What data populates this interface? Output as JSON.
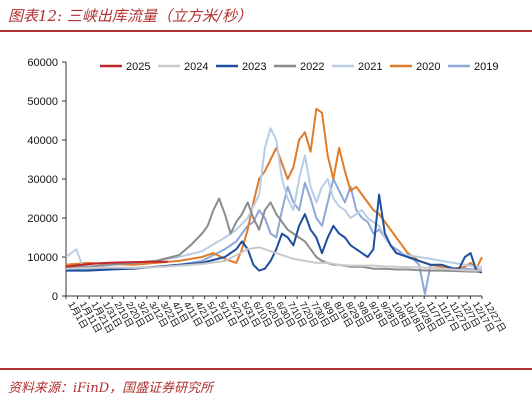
{
  "figure": {
    "title": "图表12:  三峡出库流量（立方米/秒）",
    "source": "资料来源：iFinD，国盛证券研究所"
  },
  "chart_data": {
    "type": "line",
    "title": "图表12:  三峡出库流量（立方米/秒）",
    "xlabel": "",
    "ylabel": "",
    "ylim": [
      0,
      60000
    ],
    "yticks": [
      0,
      10000,
      20000,
      30000,
      40000,
      50000,
      60000
    ],
    "xticks": [
      "1月1日",
      "1月11日",
      "1月21日",
      "1/31日",
      "2/10日",
      "2/20日",
      "3/2日",
      "3/12日",
      "3/22日",
      "4/1日",
      "4/11日",
      "4/21日",
      "5/1日",
      "5/11日",
      "5/21日",
      "5/31日",
      "6/10日",
      "6/20日",
      "6/30日",
      "7/10日",
      "7/20日",
      "7/30日",
      "8/9日",
      "8/19日",
      "8/29日",
      "9/8日",
      "9/18日",
      "9/28日",
      "10/8日",
      "10/18日",
      "10/28日",
      "11/7日",
      "11/17日",
      "11/27日",
      "12/7日",
      "12/17日",
      "12/27日"
    ],
    "grid": false,
    "legend_position": "top",
    "series": [
      {
        "name": "2025",
        "color": "#c0282d",
        "x": [
          1,
          15,
          30,
          45,
          60,
          75,
          90
        ],
        "values": [
          7500,
          8000,
          8400,
          8600,
          8700,
          8800,
          8800
        ]
      },
      {
        "name": "2024",
        "color": "#c9c9c9",
        "x": [
          1,
          20,
          40,
          60,
          80,
          100,
          120,
          140,
          150,
          160,
          170,
          180,
          190,
          200,
          210,
          220,
          230,
          240,
          250,
          260,
          270,
          280,
          290,
          300,
          310,
          320,
          330,
          340,
          350,
          360,
          365
        ],
        "values": [
          7000,
          7200,
          7300,
          7200,
          7400,
          7800,
          8200,
          9000,
          10500,
          12000,
          12500,
          11500,
          10500,
          9500,
          9000,
          8500,
          8500,
          8000,
          7800,
          7800,
          7800,
          7600,
          7500,
          7400,
          7300,
          7200,
          7000,
          6800,
          6600,
          6500,
          6500
        ]
      },
      {
        "name": "2023",
        "color": "#1f4e9c",
        "x": [
          1,
          20,
          40,
          60,
          80,
          100,
          120,
          140,
          150,
          155,
          160,
          165,
          170,
          175,
          180,
          185,
          190,
          195,
          200,
          205,
          210,
          215,
          220,
          225,
          230,
          235,
          240,
          245,
          250,
          255,
          260,
          265,
          270,
          275,
          280,
          285,
          290,
          300,
          310,
          320,
          330,
          340,
          345,
          350,
          355,
          360,
          365
        ],
        "values": [
          6500,
          6500,
          6800,
          7000,
          7500,
          8000,
          8500,
          10000,
          12000,
          14000,
          12000,
          8000,
          6500,
          7000,
          9000,
          12000,
          16000,
          15000,
          13000,
          18000,
          21000,
          17000,
          15000,
          11000,
          15000,
          18000,
          16000,
          15000,
          13000,
          12000,
          11000,
          10000,
          12000,
          26000,
          16000,
          13000,
          11000,
          10000,
          9000,
          8000,
          8000,
          7000,
          7000,
          10000,
          11000,
          6500,
          6000
        ]
      },
      {
        "name": "2022",
        "color": "#8c8c8c",
        "x": [
          1,
          20,
          40,
          60,
          80,
          100,
          110,
          120,
          125,
          130,
          135,
          140,
          145,
          150,
          155,
          160,
          165,
          170,
          175,
          180,
          185,
          190,
          195,
          200,
          205,
          210,
          215,
          220,
          225,
          230,
          235,
          240,
          250,
          260,
          270,
          280,
          290,
          300,
          310,
          320,
          330,
          340,
          350,
          360,
          365
        ],
        "values": [
          7500,
          7500,
          8000,
          8500,
          9000,
          10500,
          13000,
          16000,
          18000,
          22000,
          25000,
          21000,
          16000,
          19000,
          21000,
          24000,
          20000,
          17000,
          22000,
          24000,
          21000,
          19000,
          17000,
          16000,
          15000,
          14000,
          12000,
          10000,
          9000,
          8500,
          8000,
          8000,
          7500,
          7500,
          7000,
          7000,
          6800,
          6800,
          6600,
          6500,
          6500,
          6400,
          6300,
          6200,
          6200
        ]
      },
      {
        "name": "2021",
        "color": "#b8cde6",
        "x": [
          1,
          10,
          15,
          20,
          40,
          60,
          80,
          100,
          120,
          140,
          150,
          160,
          170,
          175,
          180,
          185,
          190,
          195,
          200,
          205,
          210,
          215,
          220,
          225,
          230,
          235,
          240,
          245,
          250,
          255,
          260,
          265,
          270,
          275,
          280,
          285,
          290,
          300,
          310,
          320,
          330,
          340,
          350,
          360,
          365
        ],
        "values": [
          10000,
          12000,
          8000,
          7500,
          8000,
          8500,
          9000,
          10000,
          11500,
          15000,
          17000,
          20000,
          26000,
          38000,
          43000,
          40000,
          30000,
          25000,
          22000,
          30000,
          36000,
          28000,
          24000,
          28000,
          30000,
          25000,
          23000,
          22000,
          20000,
          21000,
          22000,
          20000,
          19000,
          18000,
          15000,
          13000,
          11000,
          10500,
          10000,
          9500,
          9000,
          8500,
          8000,
          7500,
          7500
        ]
      },
      {
        "name": "2020",
        "color": "#e07b2a",
        "x": [
          1,
          20,
          40,
          60,
          80,
          100,
          120,
          130,
          140,
          150,
          155,
          160,
          165,
          170,
          175,
          180,
          185,
          190,
          195,
          200,
          205,
          210,
          215,
          220,
          225,
          230,
          235,
          240,
          245,
          250,
          255,
          260,
          265,
          270,
          275,
          280,
          285,
          290,
          295,
          300,
          310,
          320,
          330,
          340,
          350,
          355,
          360,
          365
        ],
        "values": [
          8000,
          8500,
          8200,
          8000,
          8500,
          9000,
          10000,
          11000,
          9500,
          8500,
          12000,
          17000,
          24000,
          30000,
          32000,
          35000,
          38000,
          34000,
          30000,
          33000,
          40000,
          42000,
          37000,
          48000,
          47000,
          36000,
          30000,
          38000,
          32000,
          27000,
          28000,
          26000,
          24000,
          22000,
          21000,
          19000,
          17000,
          15000,
          13000,
          11000,
          9000,
          8000,
          7500,
          7000,
          7500,
          8500,
          7000,
          10000
        ]
      },
      {
        "name": "2019",
        "color": "#8ea7d6",
        "x": [
          1,
          20,
          40,
          60,
          80,
          100,
          120,
          130,
          140,
          150,
          155,
          160,
          165,
          170,
          175,
          180,
          185,
          190,
          195,
          200,
          205,
          210,
          215,
          220,
          225,
          230,
          235,
          240,
          245,
          250,
          255,
          260,
          265,
          270,
          275,
          280,
          285,
          290,
          295,
          300,
          305,
          310,
          315,
          320,
          330,
          340,
          350,
          360,
          365
        ],
        "values": [
          6800,
          6800,
          7000,
          7200,
          7500,
          8000,
          9000,
          10500,
          12000,
          14000,
          16000,
          18000,
          19000,
          22000,
          20000,
          16000,
          15000,
          22000,
          28000,
          24000,
          22000,
          29000,
          25000,
          20000,
          18000,
          24000,
          30000,
          27000,
          24000,
          28000,
          22000,
          20000,
          19000,
          16000,
          17000,
          15000,
          13000,
          12000,
          11000,
          10000,
          9500,
          8000,
          500,
          8000,
          7500,
          7200,
          7000,
          6800,
          6800
        ]
      }
    ]
  }
}
